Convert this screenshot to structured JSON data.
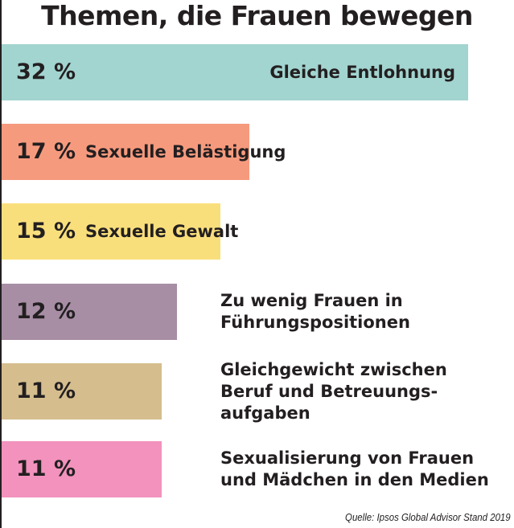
{
  "chart_data": {
    "type": "bar",
    "orientation": "horizontal",
    "title": "Themen, die Frauen bewegen",
    "unit": "%",
    "xlim": [
      0,
      32
    ],
    "categories": [
      [
        "Gleiche Entlohnung"
      ],
      [
        "Sexuelle Belästigung"
      ],
      [
        "Sexuelle Gewalt"
      ],
      [
        "Zu wenig Frauen in",
        "Führungspositionen"
      ],
      [
        "Gleichgewicht zwischen",
        "Beruf und Betreuungs-",
        "aufgaben"
      ],
      [
        "Sexualisierung von Frauen",
        "und Mädchen in den Medien"
      ]
    ],
    "values": [
      32,
      17,
      15,
      12,
      11,
      11
    ],
    "value_labels": [
      "32 %",
      "17 %",
      "15 %",
      "12 %",
      "11 %",
      "11 %"
    ],
    "colors": [
      "#a2d4d0",
      "#f69a7e",
      "#f9df7c",
      "#a78ea5",
      "#d5bd8e",
      "#f292bd"
    ],
    "source": "Quelle: Ipsos Global Advisor  Stand 2019",
    "grid": false,
    "legend": "none"
  }
}
